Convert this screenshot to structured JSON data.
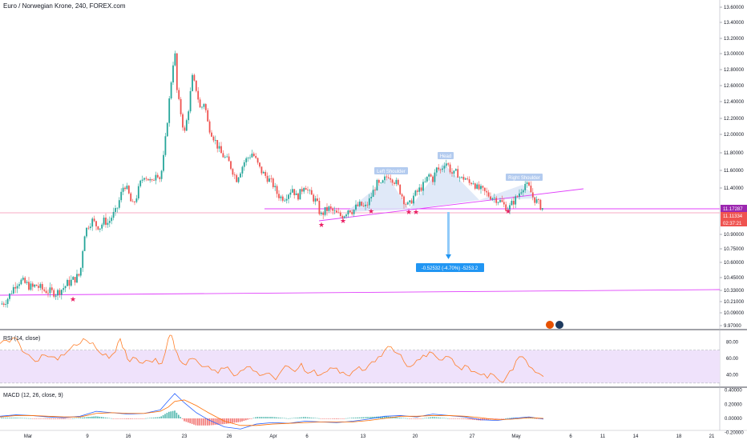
{
  "chart_title": "Euro / Norwegian Krone, 240, FOREX.com",
  "colors": {
    "up": "#26a69a",
    "down": "#ef5350",
    "pattern_fill": "#dbe5f7",
    "neckline": "#e040fb",
    "rsi_line": "#ff7f2a",
    "rsi_band": "#efe2fb",
    "macd_line": "#2962ff",
    "signal_line": "#ff6d00",
    "label_box": "#2196f3",
    "price_tag": "#9c27b0",
    "last_tag": "#ef5350"
  },
  "chart_data": [
    {
      "type": "candlestick",
      "x_ticks": [
        "Mar",
        "9",
        "16",
        "23",
        "26",
        "Apr",
        "6",
        "13",
        "20",
        "27",
        "May",
        "6",
        "11",
        "14",
        "18",
        "21"
      ],
      "y_ticks": [
        "13.60000",
        "13.40000",
        "13.20000",
        "13.00000",
        "12.80000",
        "12.60000",
        "12.40000",
        "12.20000",
        "12.00000",
        "11.80000",
        "11.60000",
        "11.40000",
        "10.90000",
        "10.75000",
        "10.60000",
        "10.45000",
        "10.33000",
        "10.21000",
        "10.09000",
        "9.97000"
      ],
      "ylim": [
        9.97,
        13.6
      ],
      "close_path": [
        [
          0,
          10.18
        ],
        [
          5,
          10.2
        ],
        [
          10,
          10.25
        ],
        [
          15,
          10.33
        ],
        [
          20,
          10.4
        ],
        [
          25,
          10.42
        ],
        [
          30,
          10.4
        ],
        [
          35,
          10.38
        ],
        [
          40,
          10.35
        ],
        [
          45,
          10.38
        ],
        [
          50,
          10.35
        ],
        [
          55,
          10.33
        ],
        [
          60,
          10.32
        ],
        [
          65,
          10.31
        ],
        [
          70,
          10.3
        ],
        [
          75,
          10.33
        ],
        [
          80,
          10.36
        ],
        [
          85,
          10.4
        ],
        [
          90,
          10.42
        ],
        [
          95,
          10.45
        ],
        [
          100,
          10.48
        ],
        [
          105,
          10.9
        ],
        [
          110,
          11.0
        ],
        [
          115,
          11.05
        ],
        [
          120,
          11.0
        ],
        [
          125,
          10.98
        ],
        [
          130,
          11.05
        ],
        [
          135,
          11.02
        ],
        [
          140,
          11.1
        ],
        [
          145,
          11.15
        ],
        [
          150,
          11.3
        ],
        [
          155,
          11.45
        ],
        [
          160,
          11.35
        ],
        [
          165,
          11.2
        ],
        [
          170,
          11.3
        ],
        [
          175,
          11.45
        ],
        [
          180,
          11.55
        ],
        [
          185,
          11.5
        ],
        [
          190,
          11.45
        ],
        [
          195,
          11.6
        ],
        [
          200,
          11.5
        ],
        [
          205,
          11.8
        ],
        [
          210,
          12.3
        ],
        [
          215,
          12.8
        ],
        [
          218,
          13.05
        ],
        [
          221,
          12.5
        ],
        [
          225,
          12.3
        ],
        [
          230,
          12.0
        ],
        [
          235,
          12.3
        ],
        [
          240,
          12.7
        ],
        [
          245,
          12.55
        ],
        [
          250,
          12.3
        ],
        [
          255,
          12.4
        ],
        [
          260,
          12.1
        ],
        [
          265,
          12.0
        ],
        [
          270,
          11.9
        ],
        [
          275,
          11.8
        ],
        [
          280,
          11.75
        ],
        [
          285,
          11.7
        ],
        [
          290,
          11.6
        ],
        [
          295,
          11.5
        ],
        [
          300,
          11.6
        ],
        [
          305,
          11.7
        ],
        [
          310,
          11.75
        ],
        [
          315,
          11.8
        ],
        [
          320,
          11.7
        ],
        [
          325,
          11.6
        ],
        [
          330,
          11.55
        ],
        [
          335,
          11.5
        ],
        [
          340,
          11.45
        ],
        [
          345,
          11.35
        ],
        [
          350,
          11.3
        ],
        [
          355,
          11.3
        ],
        [
          360,
          11.35
        ],
        [
          365,
          11.4
        ],
        [
          370,
          11.3
        ],
        [
          375,
          11.35
        ],
        [
          380,
          11.45
        ],
        [
          385,
          11.35
        ],
        [
          390,
          11.3
        ],
        [
          395,
          11.25
        ],
        [
          400,
          11.1
        ],
        [
          405,
          11.15
        ],
        [
          410,
          11.18
        ],
        [
          415,
          11.15
        ],
        [
          420,
          11.12
        ],
        [
          425,
          11.1
        ],
        [
          430,
          11.12
        ],
        [
          435,
          11.18
        ],
        [
          440,
          11.15
        ],
        [
          445,
          11.2
        ],
        [
          450,
          11.22
        ],
        [
          455,
          11.18
        ],
        [
          460,
          11.25
        ],
        [
          465,
          11.35
        ],
        [
          470,
          11.45
        ],
        [
          475,
          11.42
        ],
        [
          480,
          11.5
        ],
        [
          485,
          11.55
        ],
        [
          490,
          11.5
        ],
        [
          495,
          11.45
        ],
        [
          500,
          11.35
        ],
        [
          505,
          11.25
        ],
        [
          510,
          11.2
        ],
        [
          515,
          11.3
        ],
        [
          520,
          11.35
        ],
        [
          525,
          11.4
        ],
        [
          530,
          11.45
        ],
        [
          535,
          11.55
        ],
        [
          540,
          11.5
        ],
        [
          545,
          11.62
        ],
        [
          550,
          11.6
        ],
        [
          555,
          11.7
        ],
        [
          558,
          11.68
        ],
        [
          562,
          11.6
        ],
        [
          565,
          11.55
        ],
        [
          570,
          11.58
        ],
        [
          575,
          11.5
        ],
        [
          580,
          11.52
        ],
        [
          585,
          11.45
        ],
        [
          590,
          11.48
        ],
        [
          595,
          11.4
        ],
        [
          600,
          11.38
        ],
        [
          605,
          11.35
        ],
        [
          610,
          11.32
        ],
        [
          615,
          11.3
        ],
        [
          620,
          11.28
        ],
        [
          625,
          11.25
        ],
        [
          630,
          11.2
        ],
        [
          635,
          11.18
        ],
        [
          640,
          11.25
        ],
        [
          645,
          11.3
        ],
        [
          650,
          11.38
        ],
        [
          655,
          11.45
        ],
        [
          660,
          11.4
        ],
        [
          665,
          11.3
        ],
        [
          670,
          11.25
        ],
        [
          675,
          11.2
        ],
        [
          678,
          11.17
        ]
      ],
      "pattern_labels": [
        "Left Shoulder",
        "Head",
        "Right Shoulder"
      ],
      "measure_label": "-0.52532 (-4.70%) -5253.2",
      "price_tags": [
        "11.17287",
        "11.11334",
        "02:37:21"
      ]
    },
    {
      "type": "line",
      "title": "RSI (14, close)",
      "y_ticks": [
        "80.00",
        "60.00",
        "40.00"
      ],
      "ylim": [
        25,
        95
      ],
      "series_values": [
        [
          0,
          78
        ],
        [
          8,
          82
        ],
        [
          16,
          85
        ],
        [
          24,
          78
        ],
        [
          32,
          66
        ],
        [
          40,
          60
        ],
        [
          48,
          57
        ],
        [
          56,
          64
        ],
        [
          64,
          62
        ],
        [
          72,
          58
        ],
        [
          80,
          64
        ],
        [
          88,
          72
        ],
        [
          96,
          76
        ],
        [
          104,
          84
        ],
        [
          112,
          78
        ],
        [
          120,
          72
        ],
        [
          128,
          64
        ],
        [
          136,
          60
        ],
        [
          144,
          68
        ],
        [
          150,
          84
        ],
        [
          156,
          70
        ],
        [
          162,
          56
        ],
        [
          170,
          60
        ],
        [
          178,
          54
        ],
        [
          186,
          57
        ],
        [
          194,
          60
        ],
        [
          202,
          54
        ],
        [
          210,
          84
        ],
        [
          214,
          88
        ],
        [
          218,
          72
        ],
        [
          224,
          58
        ],
        [
          232,
          52
        ],
        [
          240,
          60
        ],
        [
          248,
          54
        ],
        [
          256,
          50
        ],
        [
          264,
          46
        ],
        [
          272,
          42
        ],
        [
          280,
          48
        ],
        [
          288,
          44
        ],
        [
          296,
          40
        ],
        [
          304,
          46
        ],
        [
          312,
          50
        ],
        [
          320,
          44
        ],
        [
          328,
          40
        ],
        [
          336,
          42
        ],
        [
          344,
          34
        ],
        [
          352,
          46
        ],
        [
          360,
          50
        ],
        [
          368,
          44
        ],
        [
          376,
          54
        ],
        [
          384,
          42
        ],
        [
          392,
          46
        ],
        [
          400,
          40
        ],
        [
          408,
          44
        ],
        [
          416,
          48
        ],
        [
          424,
          42
        ],
        [
          432,
          40
        ],
        [
          440,
          44
        ],
        [
          448,
          50
        ],
        [
          456,
          46
        ],
        [
          464,
          56
        ],
        [
          472,
          62
        ],
        [
          480,
          70
        ],
        [
          488,
          74
        ],
        [
          496,
          66
        ],
        [
          504,
          56
        ],
        [
          512,
          50
        ],
        [
          520,
          58
        ],
        [
          528,
          64
        ],
        [
          536,
          68
        ],
        [
          544,
          62
        ],
        [
          552,
          58
        ],
        [
          560,
          62
        ],
        [
          568,
          52
        ],
        [
          576,
          46
        ],
        [
          584,
          50
        ],
        [
          592,
          44
        ],
        [
          600,
          40
        ],
        [
          608,
          36
        ],
        [
          616,
          40
        ],
        [
          624,
          32
        ],
        [
          632,
          38
        ],
        [
          640,
          46
        ],
        [
          648,
          62
        ],
        [
          656,
          58
        ],
        [
          664,
          48
        ],
        [
          672,
          42
        ],
        [
          678,
          38
        ]
      ]
    },
    {
      "type": "bar",
      "title": "MACD (12, 26, close, 9)",
      "y_ticks": [
        "0.40000",
        "0.20000",
        "0.00000",
        "-0.20000"
      ],
      "ylim": [
        -0.26,
        0.44
      ],
      "macd_line": [
        [
          0,
          0.03
        ],
        [
          20,
          0.05
        ],
        [
          40,
          0.04
        ],
        [
          60,
          0.02
        ],
        [
          80,
          0.01
        ],
        [
          100,
          0.03
        ],
        [
          120,
          0.1
        ],
        [
          140,
          0.08
        ],
        [
          160,
          0.06
        ],
        [
          180,
          0.07
        ],
        [
          200,
          0.12
        ],
        [
          210,
          0.25
        ],
        [
          218,
          0.35
        ],
        [
          230,
          0.22
        ],
        [
          245,
          0.08
        ],
        [
          260,
          -0.02
        ],
        [
          280,
          -0.12
        ],
        [
          300,
          -0.15
        ],
        [
          320,
          -0.08
        ],
        [
          340,
          -0.06
        ],
        [
          360,
          -0.07
        ],
        [
          380,
          -0.04
        ],
        [
          400,
          -0.05
        ],
        [
          420,
          -0.06
        ],
        [
          440,
          -0.04
        ],
        [
          460,
          -0.01
        ],
        [
          480,
          0.03
        ],
        [
          500,
          0.04
        ],
        [
          520,
          0.02
        ],
        [
          540,
          0.06
        ],
        [
          560,
          0.04
        ],
        [
          580,
          0.02
        ],
        [
          600,
          -0.02
        ],
        [
          620,
          -0.03
        ],
        [
          640,
          0.0
        ],
        [
          660,
          0.02
        ],
        [
          678,
          -0.01
        ]
      ],
      "signal_line": [
        [
          0,
          0.02
        ],
        [
          20,
          0.04
        ],
        [
          40,
          0.04
        ],
        [
          60,
          0.03
        ],
        [
          80,
          0.02
        ],
        [
          100,
          0.02
        ],
        [
          120,
          0.07
        ],
        [
          140,
          0.08
        ],
        [
          160,
          0.07
        ],
        [
          180,
          0.07
        ],
        [
          200,
          0.1
        ],
        [
          210,
          0.16
        ],
        [
          218,
          0.24
        ],
        [
          230,
          0.26
        ],
        [
          245,
          0.18
        ],
        [
          260,
          0.08
        ],
        [
          280,
          -0.04
        ],
        [
          300,
          -0.1
        ],
        [
          320,
          -0.1
        ],
        [
          340,
          -0.08
        ],
        [
          360,
          -0.07
        ],
        [
          380,
          -0.06
        ],
        [
          400,
          -0.05
        ],
        [
          420,
          -0.05
        ],
        [
          440,
          -0.05
        ],
        [
          460,
          -0.03
        ],
        [
          480,
          0.0
        ],
        [
          500,
          0.03
        ],
        [
          520,
          0.03
        ],
        [
          540,
          0.04
        ],
        [
          560,
          0.04
        ],
        [
          580,
          0.03
        ],
        [
          600,
          0.01
        ],
        [
          620,
          -0.02
        ],
        [
          640,
          -0.01
        ],
        [
          660,
          0.01
        ],
        [
          678,
          0.0
        ]
      ]
    }
  ]
}
